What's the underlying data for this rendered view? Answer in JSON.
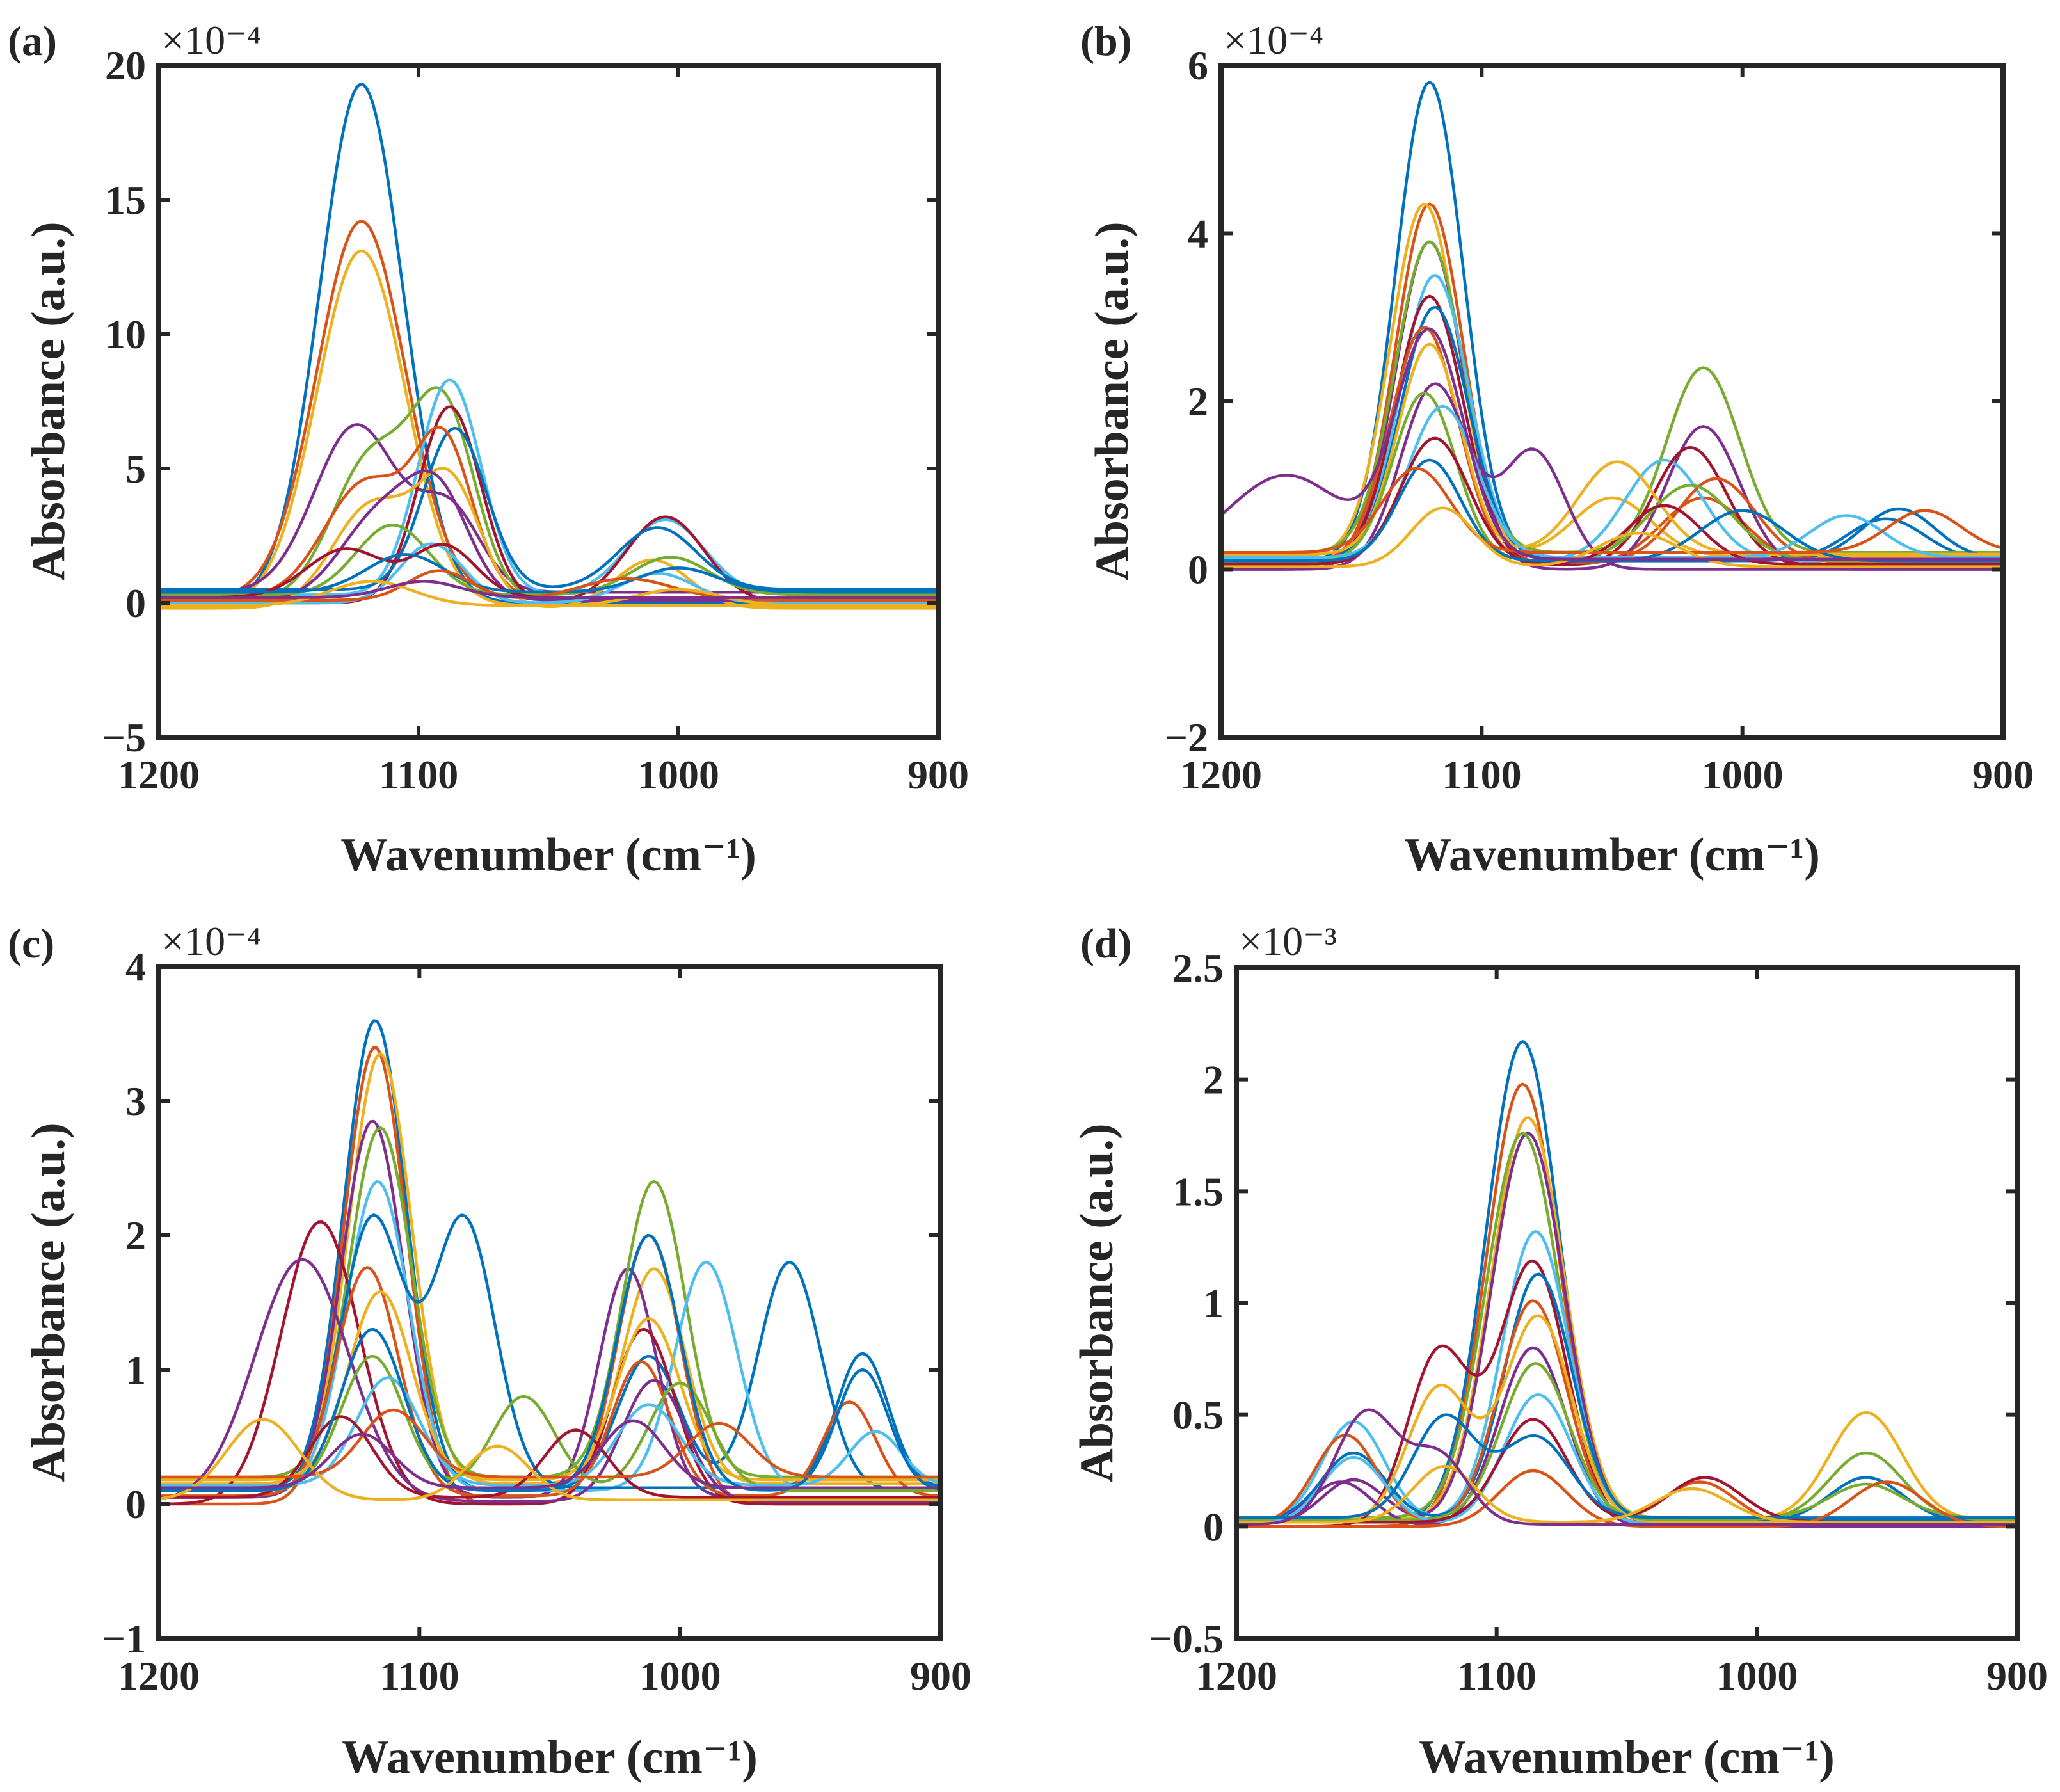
{
  "palette": [
    "#0072BD",
    "#D95319",
    "#EDB120",
    "#7E2F8E",
    "#77AC30",
    "#4DBEEE",
    "#A2142F"
  ],
  "chart_data": [
    {
      "type": "line",
      "panel_label": "(a)",
      "multiplier": "×10⁻⁴",
      "xlabel": "Wavenumber (cm⁻¹)",
      "ylabel": "Absorbance (a.u.)",
      "title": "",
      "xlim": [
        1200,
        900
      ],
      "ylim": [
        -5,
        20
      ],
      "x_ticks": [
        1200,
        1100,
        1000,
        900
      ],
      "y_ticks": [
        -5,
        0,
        5,
        10,
        15,
        20
      ],
      "x_tick_labels": [
        "1200",
        "1100",
        "1000",
        "900"
      ],
      "y_tick_labels": [
        "−5",
        "0",
        "5",
        "10",
        "15",
        "20"
      ],
      "grid": false,
      "legend": "none",
      "x_range": [
        1200,
        900
      ],
      "series_baseline": [
        0.0,
        0.2,
        -0.1,
        0.4,
        0.1,
        0.3,
        0.0,
        0.5,
        0.2,
        -0.2,
        0.1,
        0.3,
        0.0,
        0.2,
        0.4,
        0.1,
        -0.1,
        0.2
      ],
      "series_peaks": [
        [
          [
            1122,
            19.3,
            16
          ]
        ],
        [
          [
            1122,
            14.0,
            17
          ]
        ],
        [
          [
            1122,
            13.2,
            17
          ]
        ],
        [
          [
            1124,
            6.2,
            16
          ],
          [
            1088,
            3.0,
            12
          ]
        ],
        [
          [
            1118,
            5.3,
            15
          ],
          [
            1090,
            6.8,
            12
          ]
        ],
        [
          [
            1088,
            8.0,
            12
          ],
          [
            1005,
            2.8,
            15
          ]
        ],
        [
          [
            1088,
            7.3,
            12
          ],
          [
            1005,
            3.2,
            15
          ]
        ],
        [
          [
            1086,
            6.0,
            12
          ],
          [
            1008,
            2.3,
            15
          ]
        ],
        [
          [
            1120,
            4.3,
            16
          ],
          [
            1090,
            5.5,
            11
          ]
        ],
        [
          [
            1118,
            3.8,
            15
          ],
          [
            1088,
            4.6,
            12
          ],
          [
            1010,
            1.8,
            14
          ]
        ],
        [
          [
            1115,
            3.1,
            15
          ],
          [
            1092,
            3.6,
            12
          ]
        ],
        [
          [
            1110,
            2.6,
            14
          ],
          [
            1003,
            1.4,
            15
          ]
        ],
        [
          [
            1095,
            2.2,
            12
          ],
          [
            1008,
            1.1,
            14
          ]
        ],
        [
          [
            1128,
            1.8,
            15
          ],
          [
            1090,
            1.9,
            12
          ]
        ],
        [
          [
            1105,
            1.4,
            15
          ],
          [
            1000,
            0.9,
            15
          ]
        ],
        [
          [
            1092,
            1.1,
            12
          ],
          [
            1020,
            0.8,
            18
          ]
        ],
        [
          [
            1118,
            0.9,
            16
          ],
          [
            1000,
            0.6,
            16
          ]
        ],
        [
          [
            1098,
            0.6,
            14
          ]
        ]
      ]
    },
    {
      "type": "line",
      "panel_label": "(b)",
      "multiplier": "×10⁻⁴",
      "xlabel": "Wavenumber (cm⁻¹)",
      "ylabel": "Absorbance (a.u.)",
      "title": "",
      "xlim": [
        1200,
        900
      ],
      "ylim": [
        -2,
        6
      ],
      "x_ticks": [
        1200,
        1100,
        1000,
        900
      ],
      "y_ticks": [
        -2,
        0,
        2,
        4,
        6
      ],
      "x_tick_labels": [
        "1200",
        "1100",
        "1000",
        "900"
      ],
      "y_tick_labels": [
        "−2",
        "0",
        "2",
        "4",
        "6"
      ],
      "grid": false,
      "legend": "none",
      "x_range": [
        1200,
        900
      ],
      "series_baseline": [
        0.1,
        0.05,
        0.15,
        0.0,
        0.2,
        0.1,
        0.05,
        0.12,
        0.08,
        0.18,
        0.0,
        0.1,
        0.14,
        0.06,
        0.1,
        0.2,
        0.03,
        0.12
      ],
      "series_peaks": [
        [
          [
            1120,
            5.7,
            13
          ],
          [
            945,
            0.5,
            15
          ]
        ],
        [
          [
            1120,
            4.3,
            13
          ],
          [
            1015,
            0.8,
            16
          ]
        ],
        [
          [
            1122,
            4.2,
            13
          ],
          [
            1050,
            0.7,
            15
          ]
        ],
        [
          [
            1120,
            3.9,
            13
          ],
          [
            1015,
            1.7,
            14
          ]
        ],
        [
          [
            1120,
            3.7,
            13
          ],
          [
            1015,
            2.2,
            14
          ]
        ],
        [
          [
            1118,
            3.4,
            13
          ],
          [
            1030,
            1.2,
            15
          ]
        ],
        [
          [
            1120,
            3.2,
            13
          ],
          [
            1020,
            1.4,
            14
          ]
        ],
        [
          [
            1118,
            3.0,
            13
          ],
          [
            940,
            0.6,
            14
          ]
        ],
        [
          [
            1122,
            2.8,
            13
          ],
          [
            1010,
            1.0,
            15
          ]
        ],
        [
          [
            1120,
            2.5,
            12
          ],
          [
            1048,
            1.1,
            15
          ]
        ],
        [
          [
            1118,
            2.2,
            13
          ],
          [
            1080,
            1.4,
            12
          ]
        ],
        [
          [
            1122,
            2.0,
            12
          ],
          [
            1020,
            0.9,
            16
          ]
        ],
        [
          [
            1115,
            1.8,
            13
          ],
          [
            960,
            0.5,
            14
          ]
        ],
        [
          [
            1118,
            1.5,
            13
          ],
          [
            1030,
            0.7,
            14
          ]
        ],
        [
          [
            1120,
            1.2,
            12
          ],
          [
            1000,
            0.6,
            16
          ]
        ],
        [
          [
            1125,
            1.0,
            13
          ],
          [
            930,
            0.5,
            14
          ]
        ],
        [
          [
            1115,
            0.7,
            12
          ],
          [
            1040,
            0.4,
            15
          ]
        ],
        [
          [
            1175,
            1.0,
            22
          ],
          [
            1120,
            2.7,
            13
          ]
        ]
      ]
    },
    {
      "type": "line",
      "panel_label": "(c)",
      "multiplier": "×10⁻⁴",
      "xlabel": "Wavenumber (cm⁻¹)",
      "ylabel": "Absorbance (a.u.)",
      "title": "",
      "xlim": [
        1200,
        900
      ],
      "ylim": [
        -1,
        4
      ],
      "x_ticks": [
        1200,
        1100,
        1000,
        900
      ],
      "y_ticks": [
        -1,
        0,
        1,
        2,
        3,
        4
      ],
      "x_tick_labels": [
        "1200",
        "1100",
        "1000",
        "900"
      ],
      "y_tick_labels": [
        "−1",
        "0",
        "1",
        "2",
        "3",
        "4"
      ],
      "grid": false,
      "legend": "none",
      "x_range": [
        1200,
        900
      ],
      "series_baseline": [
        0.1,
        0.0,
        0.15,
        0.05,
        0.2,
        0.1,
        0.0,
        0.12,
        0.06,
        0.18,
        0.02,
        0.1,
        0.14,
        0.05,
        0.1,
        0.2,
        0.03,
        0.12
      ],
      "series_peaks": [
        [
          [
            1117,
            3.5,
            12
          ],
          [
            1012,
            1.0,
            12
          ],
          [
            958,
            1.7,
            12
          ]
        ],
        [
          [
            1117,
            3.4,
            12
          ],
          [
            1012,
            2.0,
            12
          ]
        ],
        [
          [
            1115,
            3.2,
            12
          ],
          [
            1010,
            1.6,
            12
          ]
        ],
        [
          [
            1118,
            2.8,
            12
          ],
          [
            1020,
            1.7,
            11
          ]
        ],
        [
          [
            1115,
            2.6,
            12
          ],
          [
            1010,
            2.2,
            12
          ]
        ],
        [
          [
            1116,
            2.3,
            12
          ],
          [
            990,
            1.7,
            12
          ]
        ],
        [
          [
            1138,
            2.1,
            15
          ],
          [
            1014,
            1.3,
            12
          ]
        ],
        [
          [
            1118,
            2.0,
            12
          ],
          [
            1083,
            2.0,
            12
          ],
          [
            930,
            1.0,
            10
          ]
        ],
        [
          [
            1120,
            1.7,
            12
          ],
          [
            1015,
            1.0,
            11
          ],
          [
            935,
            0.7,
            10
          ]
        ],
        [
          [
            1115,
            1.4,
            12
          ],
          [
            1012,
            1.2,
            12
          ]
        ],
        [
          [
            1145,
            1.8,
            18
          ],
          [
            1010,
            0.9,
            12
          ]
        ],
        [
          [
            1118,
            1.0,
            12
          ],
          [
            1060,
            0.7,
            12
          ],
          [
            1000,
            0.8,
            12
          ]
        ],
        [
          [
            1112,
            0.8,
            12
          ],
          [
            1012,
            0.6,
            12
          ],
          [
            925,
            0.4,
            10
          ]
        ],
        [
          [
            1130,
            0.6,
            12
          ],
          [
            1040,
            0.5,
            12
          ]
        ],
        [
          [
            1118,
            1.2,
            12
          ],
          [
            1012,
            1.9,
            12
          ],
          [
            930,
            0.9,
            10
          ]
        ],
        [
          [
            1110,
            0.5,
            12
          ],
          [
            985,
            0.4,
            12
          ]
        ],
        [
          [
            1160,
            0.6,
            14
          ],
          [
            1070,
            0.4,
            12
          ]
        ],
        [
          [
            1122,
            0.4,
            12
          ],
          [
            1018,
            0.5,
            12
          ]
        ]
      ]
    },
    {
      "type": "line",
      "panel_label": "(d)",
      "multiplier": "×10⁻³",
      "xlabel": "Wavenumber (cm⁻¹)",
      "ylabel": "Absorbance (a.u.)",
      "title": "",
      "xlim": [
        1200,
        900
      ],
      "ylim": [
        -0.5,
        2.5
      ],
      "x_ticks": [
        1200,
        1100,
        1000,
        900
      ],
      "y_ticks": [
        -0.5,
        0,
        0.5,
        1,
        1.5,
        2,
        2.5
      ],
      "x_tick_labels": [
        "1200",
        "1100",
        "1000",
        "900"
      ],
      "y_tick_labels": [
        "−0.5",
        "0",
        "0.5",
        "1",
        "1.5",
        "2",
        "2.5"
      ],
      "grid": false,
      "legend": "none",
      "x_range": [
        1200,
        900
      ],
      "series_baseline": [
        0.02,
        0.0,
        0.03,
        0.01,
        0.04,
        0.02,
        0.0,
        0.03,
        0.01,
        0.02,
        0.0,
        0.03,
        0.01,
        0.02,
        0.04,
        0.0,
        0.02,
        0.01
      ],
      "series_peaks": [
        [
          [
            1090,
            2.15,
            14
          ],
          [
            958,
            0.2,
            14
          ]
        ],
        [
          [
            1090,
            1.98,
            14
          ],
          [
            1022,
            0.2,
            14
          ]
        ],
        [
          [
            1088,
            1.8,
            14
          ],
          [
            958,
            0.48,
            14
          ]
        ],
        [
          [
            1088,
            1.75,
            14
          ],
          [
            1155,
            0.2,
            12
          ]
        ],
        [
          [
            1090,
            1.72,
            14
          ],
          [
            958,
            0.15,
            14
          ]
        ],
        [
          [
            1085,
            1.3,
            13
          ],
          [
            1155,
            0.45,
            12
          ]
        ],
        [
          [
            1086,
            1.18,
            13
          ],
          [
            1122,
            0.78,
            12
          ]
        ],
        [
          [
            1084,
            1.1,
            13
          ],
          [
            1155,
            0.3,
            12
          ]
        ],
        [
          [
            1086,
            1.0,
            13
          ],
          [
            1158,
            0.4,
            12
          ]
        ],
        [
          [
            1084,
            0.92,
            13
          ],
          [
            1122,
            0.6,
            12
          ]
        ],
        [
          [
            1086,
            0.8,
            13
          ],
          [
            1160,
            0.2,
            12
          ]
        ],
        [
          [
            1085,
            0.7,
            13
          ],
          [
            958,
            0.3,
            14
          ]
        ],
        [
          [
            1084,
            0.58,
            13
          ],
          [
            1155,
            0.3,
            12
          ]
        ],
        [
          [
            1086,
            0.46,
            13
          ],
          [
            1020,
            0.2,
            14
          ]
        ],
        [
          [
            1085,
            0.36,
            13
          ],
          [
            1120,
            0.45,
            12
          ]
        ],
        [
          [
            1086,
            0.25,
            13
          ],
          [
            950,
            0.2,
            14
          ]
        ],
        [
          [
            1120,
            0.25,
            12
          ],
          [
            1025,
            0.15,
            14
          ]
        ],
        [
          [
            1150,
            0.5,
            12
          ],
          [
            1122,
            0.3,
            11
          ]
        ]
      ]
    }
  ]
}
